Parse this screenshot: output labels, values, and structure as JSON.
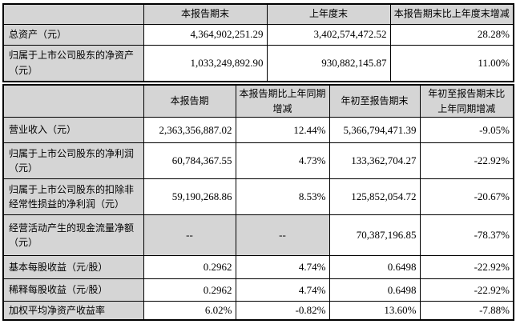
{
  "colors": {
    "header_bg": "#d5d5d5",
    "border": "#000000",
    "text": "#000000",
    "data_cell_bg": "#ffffff"
  },
  "table1": {
    "headers": [
      "",
      "本报告期末",
      "上年度末",
      "本报告期末比上年度末增减"
    ],
    "rows": [
      {
        "label": "总资产（元）",
        "values": [
          "4,364,902,251.29",
          "3,402,574,472.52",
          "28.28%"
        ]
      },
      {
        "label": "归属于上市公司股东的净资产（元）",
        "values": [
          "1,033,249,892.90",
          "930,882,145.87",
          "11.00%"
        ]
      }
    ]
  },
  "table2": {
    "headers": [
      "",
      "本报告期",
      "本报告期比上年同期增减",
      "年初至报告期末",
      "年初至报告期末比上年同期增减"
    ],
    "rows": [
      {
        "label": "营业收入（元）",
        "values": [
          "2,363,356,887.02",
          "12.44%",
          "5,366,794,471.39",
          "-9.05%"
        ]
      },
      {
        "label": "归属于上市公司股东的净利润（元）",
        "values": [
          "60,784,367.55",
          "4.73%",
          "133,362,704.27",
          "-22.92%"
        ]
      },
      {
        "label": "归属于上市公司股东的扣除非经常性损益的净利润（元）",
        "values": [
          "59,190,268.86",
          "8.53%",
          "125,852,054.72",
          "-20.67%"
        ]
      },
      {
        "label": "经营活动产生的现金流量净额（元）",
        "values": [
          "--",
          "--",
          "70,387,196.85",
          "-78.37%"
        ]
      },
      {
        "label": "基本每股收益（元/股）",
        "values": [
          "0.2962",
          "4.74%",
          "0.6498",
          "-22.92%"
        ]
      },
      {
        "label": "稀释每股收益（元/股）",
        "values": [
          "0.2962",
          "4.74%",
          "0.6498",
          "-22.92%"
        ]
      },
      {
        "label": "加权平均净资产收益率",
        "values": [
          "6.02%",
          "-0.82%",
          "13.60%",
          "-7.88%"
        ]
      }
    ]
  }
}
